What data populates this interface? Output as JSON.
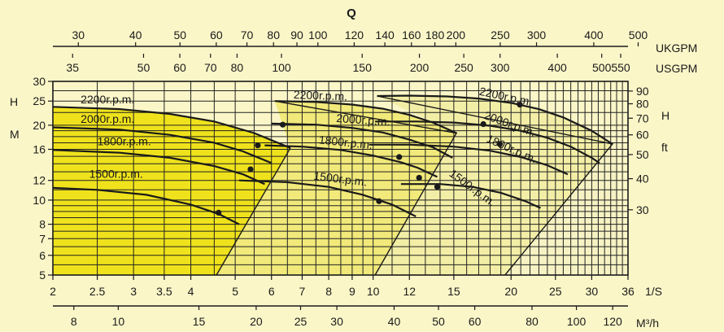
{
  "chart_data": {
    "type": "line",
    "title": "Q",
    "scale": "log-log",
    "grid": true,
    "colors": {
      "background": "#fbf6c8",
      "band_1": "#efe21c",
      "band_2": "#f1e97a",
      "band_3": "#f3eea6",
      "band_4": "#f6f2c3",
      "ink": "#1a1a1a"
    },
    "x_axis": {
      "unit": "1/S",
      "range": [
        2,
        36
      ],
      "tick_labels": [
        "2",
        "2.5",
        "3",
        "3.5",
        "4",
        "5",
        "6",
        "7",
        "8",
        "9",
        "10",
        "12",
        "15",
        "20",
        "25",
        "30",
        "36"
      ]
    },
    "x_axis_m3h": {
      "unit": "M³/h",
      "tick_labels": [
        "8",
        "10",
        "15",
        "20",
        "25",
        "30",
        "40",
        "50",
        "60",
        "80",
        "100",
        "120"
      ]
    },
    "x_axis_ukgpm": {
      "unit": "UKGPM",
      "tick_labels": [
        "30",
        "40",
        "50",
        "60",
        "70",
        "80",
        "90",
        "100",
        "120",
        "140",
        "160",
        "180",
        "200",
        "250",
        "300",
        "400",
        "500"
      ]
    },
    "x_axis_usgpm": {
      "unit": "USGPM",
      "tick_labels": [
        "35",
        "50",
        "60",
        "70",
        "80",
        "100",
        "150",
        "200",
        "250",
        "300",
        "400",
        "500",
        "550"
      ]
    },
    "y_axis_m": {
      "label_h": "H",
      "label_m": "M",
      "range": [
        5,
        30
      ],
      "tick_labels": [
        "5",
        "6",
        "7",
        "8",
        "10",
        "12",
        "16",
        "20",
        "25",
        "30"
      ]
    },
    "y_axis_ft": {
      "label_h": "H",
      "unit": "ft",
      "tick_labels": [
        "30",
        "40",
        "50",
        "60",
        "70",
        "80",
        "90"
      ]
    },
    "pumps": [
      {
        "curves": [
          {
            "name": "2200r.p.m.",
            "x": [
              2,
              2.8,
              3.6,
              4.5,
              5.5,
              6.6
            ],
            "y": [
              23.7,
              23.2,
              22.2,
              20.7,
              18.6,
              16.2
            ]
          },
          {
            "name": "2000r.p.m.",
            "x": [
              2,
              2.8,
              3.6,
              4.5,
              5.2,
              6.0
            ],
            "y": [
              19.6,
              19.2,
              18.3,
              17.0,
              15.7,
              14.1
            ]
          },
          {
            "name": "1800r.p.m.",
            "x": [
              2,
              2.8,
              3.6,
              4.5,
              5.2,
              5.8
            ],
            "y": [
              15.9,
              15.5,
              14.8,
              13.7,
              12.7,
              11.6
            ]
          },
          {
            "name": "1500r.p.m.",
            "x": [
              2,
              2.5,
              3.2,
              4.0,
              4.6,
              5.1
            ],
            "y": [
              11.2,
              11.0,
              10.5,
              9.6,
              8.8,
              8.0
            ]
          }
        ],
        "operating_points": [
          {
            "x": 5.6,
            "y": 16.6
          },
          {
            "x": 5.4,
            "y": 13.3
          },
          {
            "x": 4.6,
            "y": 8.9
          }
        ],
        "region_boundary": {
          "x": [
            4.55,
            6.6
          ],
          "y": [
            5,
            16.2
          ]
        }
      },
      {
        "curves": [
          {
            "name": "2200r.p.m.",
            "x": [
              6.1,
              7.5,
              9.0,
              10.5,
              12.0,
              13.5,
              15.2
            ],
            "y": [
              25.0,
              24.8,
              24.2,
              23.3,
              22.0,
              20.5,
              18.6
            ]
          },
          {
            "name": "2000r.p.m.",
            "x": [
              6.0,
              7.5,
              9.0,
              10.5,
              12.0,
              13.5,
              14.9
            ],
            "y": [
              20.3,
              20.1,
              19.5,
              18.7,
              17.5,
              16.3,
              14.8
            ]
          },
          {
            "name": "1800r.p.m.",
            "x": [
              5.8,
              7.0,
              8.5,
              10.0,
              11.5,
              12.5,
              13.8
            ],
            "y": [
              16.6,
              16.4,
              15.9,
              15.1,
              14.2,
              13.5,
              12.4
            ]
          },
          {
            "name": "1500r.p.m.",
            "x": [
              5.1,
              6.5,
              8.0,
              9.5,
              11.0,
              12.4
            ],
            "y": [
              12.0,
              11.8,
              11.3,
              10.5,
              9.6,
              8.6
            ]
          }
        ],
        "operating_points": [
          {
            "x": 6.35,
            "y": 20.1
          },
          {
            "x": 11.4,
            "y": 14.9
          },
          {
            "x": 12.6,
            "y": 12.3
          },
          {
            "x": 10.3,
            "y": 9.9
          }
        ],
        "region_boundary": {
          "x": [
            6.1,
            15.2,
            10.1
          ],
          "y": [
            25.0,
            18.6,
            5
          ]
        }
      },
      {
        "curves": [
          {
            "name": "2200r.p.m.",
            "x": [
              10.2,
              12.0,
              14.5,
              17.0,
              20.0,
              23.0,
              26.0,
              30.0,
              33.3
            ],
            "y": [
              26.2,
              26.3,
              26.1,
              25.6,
              24.6,
              23.2,
              21.5,
              19.0,
              16.8
            ]
          },
          {
            "name": "2000r.p.m.",
            "x": [
              10.1,
              12.5,
              15.0,
              18.0,
              21.0,
              24.0,
              27.0,
              30.0,
              31.2
            ],
            "y": [
              20.7,
              20.7,
              20.5,
              19.9,
              19.0,
              17.8,
              16.4,
              14.8,
              14.1
            ]
          },
          {
            "name": "1800r.p.m.",
            "x": [
              9.8,
              12.0,
              15.0,
              18.0,
              21.0,
              24.0,
              26.6
            ],
            "y": [
              16.7,
              16.7,
              16.4,
              15.8,
              14.9,
              13.8,
              12.7
            ]
          },
          {
            "name": "1500r.p.m.",
            "x": [
              11.5,
              14.0,
              16.5,
              19.0,
              21.5,
              23.2
            ],
            "y": [
              11.6,
              11.6,
              11.3,
              10.7,
              9.9,
              9.3
            ]
          }
        ],
        "operating_points": [
          {
            "x": 17.4,
            "y": 20.2
          },
          {
            "x": 20.9,
            "y": 24.2
          },
          {
            "x": 18.9,
            "y": 16.8
          },
          {
            "x": 13.8,
            "y": 11.3
          }
        ],
        "region_boundary": {
          "x": [
            10.2,
            33.3,
            19.4
          ],
          "y": [
            26.2,
            16.8,
            5
          ]
        }
      }
    ]
  }
}
